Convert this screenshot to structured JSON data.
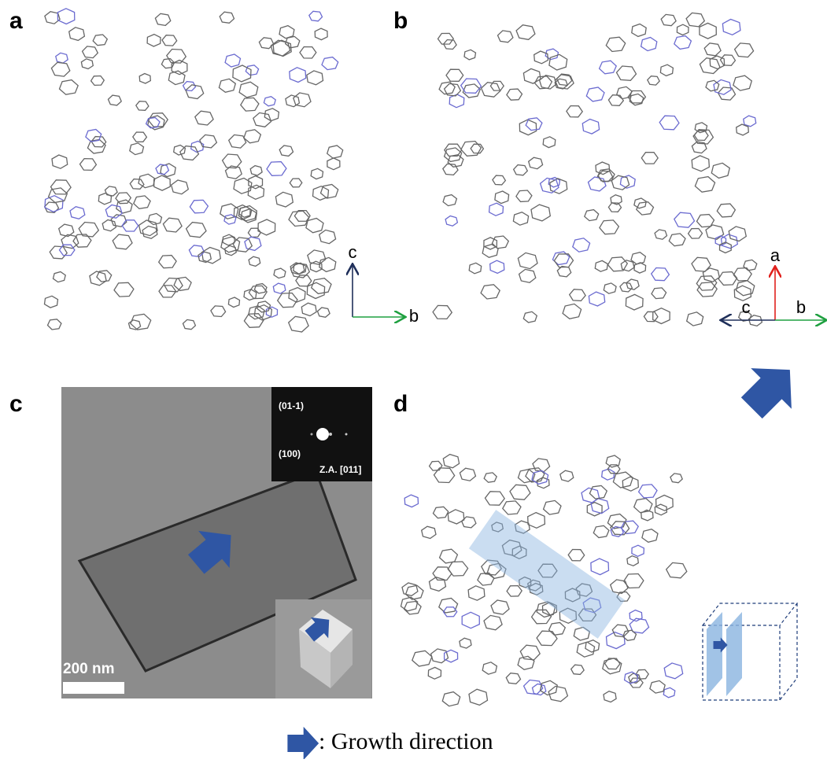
{
  "panels": [
    {
      "label": "a",
      "axes": [
        "c",
        "b"
      ]
    },
    {
      "label": "b",
      "axes": [
        "a",
        "c",
        "b"
      ]
    },
    {
      "label": "c",
      "diffraction_labels": [
        "(01-1)",
        "(100)",
        "Z.A. [011]"
      ],
      "scale_bar": "200 nm"
    },
    {
      "label": "d"
    }
  ],
  "legend": {
    "text": ": Growth direction"
  }
}
